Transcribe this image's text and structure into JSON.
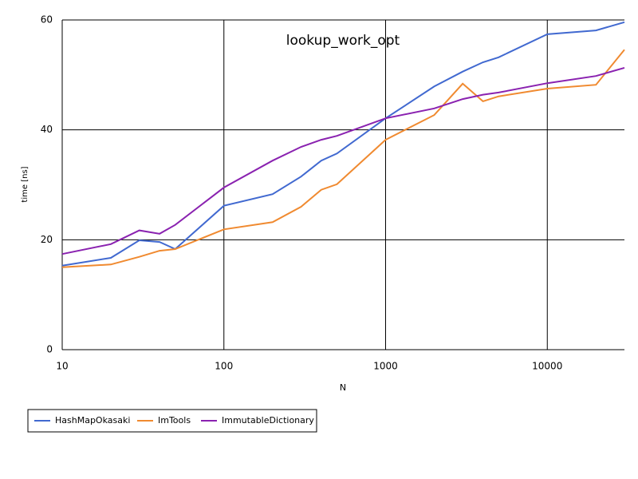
{
  "chart_data": {
    "type": "line",
    "title": "lookup_work_opt",
    "x_label": "N",
    "y_label": "time [ns]",
    "x": [
      10,
      20,
      30,
      40,
      50,
      100,
      200,
      300,
      400,
      500,
      1000,
      2000,
      3000,
      4000,
      5000,
      10000,
      20000,
      30000
    ],
    "x_log": true,
    "xlim": [
      10,
      30000
    ],
    "xticks": [
      10,
      100,
      1000,
      10000
    ],
    "ylim": [
      0,
      60
    ],
    "yticks": [
      0,
      20,
      40,
      60
    ],
    "grid": true,
    "legend": "bottom-left",
    "series": [
      {
        "name": "HashMapOkasaki",
        "color": "#4169d0",
        "values": [
          15.3,
          16.7,
          19.9,
          19.6,
          18.3,
          26.2,
          28.3,
          31.5,
          34.4,
          35.7,
          42.1,
          47.9,
          50.6,
          52.3,
          53.2,
          57.4,
          58.1,
          59.6
        ]
      },
      {
        "name": "ImTools",
        "color": "#f08a30",
        "values": [
          15.0,
          15.5,
          16.9,
          18.0,
          18.3,
          21.9,
          23.2,
          26.0,
          29.1,
          30.1,
          38.2,
          42.7,
          48.4,
          45.2,
          46.1,
          47.5,
          48.2,
          54.6
        ]
      },
      {
        "name": "ImmutableDictionary",
        "color": "#8a22b0",
        "values": [
          17.4,
          19.2,
          21.7,
          21.1,
          22.7,
          29.5,
          34.4,
          36.9,
          38.2,
          38.9,
          42.1,
          43.9,
          45.6,
          46.4,
          46.8,
          48.5,
          49.8,
          51.3
        ]
      }
    ]
  }
}
